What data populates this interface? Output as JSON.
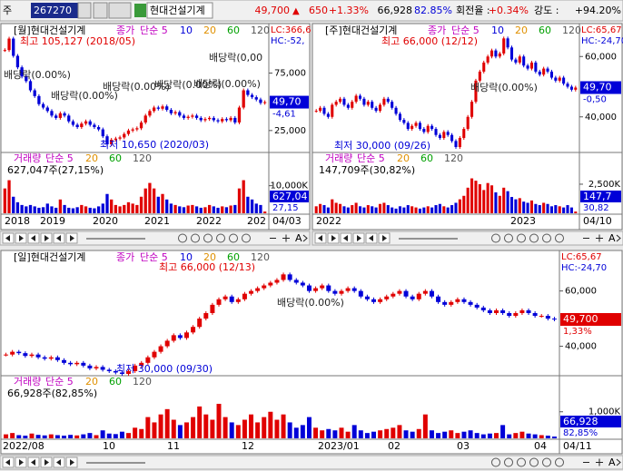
{
  "toolbar": {
    "market": "주",
    "code": "267270",
    "name": "현대건설기계",
    "price": "49,700",
    "arrow": "▲",
    "change": "650",
    "rate": "+1.33%",
    "volume": "66,928",
    "volume_ratio": "82.85%",
    "turnover_label": "회전율 :",
    "turnover": "+0.34%",
    "strength_label": "강도 :",
    "strength": "+94.20%"
  },
  "scroll_text": "A",
  "panels": [
    {
      "title": "[월]현대건설기계",
      "ma_legend": [
        "종가",
        "단순 5",
        "10",
        "20",
        "60",
        "120"
      ],
      "lc": "LC:366,6",
      "hc": "HC:-52,",
      "annotations": [
        "최고 105,127 (2018/05)",
        "최저 10,650 (2020/03)",
        "배당락(0.00%)",
        "배당락(0.00%)",
        "배당락(0.00%)",
        "배당락(0.00%)",
        "배당락(0.00%)",
        "배당락(0,00"
      ],
      "price_ticks": [
        {
          "value": 75000,
          "label": "75,000"
        },
        {
          "value": 25000,
          "label": "25,000"
        }
      ],
      "price_box": {
        "value": 49700,
        "label": "49,70"
      },
      "change_label": "-4,61",
      "volume_title": [
        "거래량",
        "단순 5",
        "20",
        "60",
        "120"
      ],
      "volume_text": "627,047주(27,15%)",
      "volume_ticks": [
        {
          "value": 10000,
          "label": "10,000K"
        }
      ],
      "volume_box": "627,04",
      "volume_ratio": "27,15",
      "x_labels": [
        "2018",
        "2019",
        "2020",
        "2021",
        "2022",
        "202"
      ],
      "last_date": "04/03",
      "ylim": [
        7500,
        107000
      ],
      "vlim": [
        0,
        13500
      ],
      "closes": [
        95000,
        105000,
        90000,
        80000,
        72000,
        68000,
        60000,
        55000,
        48000,
        45000,
        42000,
        38000,
        36000,
        40000,
        38000,
        33000,
        30000,
        28000,
        31000,
        33000,
        30000,
        28000,
        26000,
        20000,
        13000,
        17000,
        18000,
        19000,
        22000,
        25000,
        26000,
        27000,
        32000,
        38000,
        42000,
        45000,
        44000,
        46000,
        43000,
        40000,
        41000,
        38000,
        36000,
        37000,
        38000,
        36000,
        34000,
        35000,
        36000,
        34000,
        33000,
        35000,
        34000,
        36000,
        32000,
        45000,
        60000,
        56000,
        54000,
        52000,
        49050,
        49700
      ],
      "volumes": [
        9000,
        12000,
        6000,
        4000,
        3000,
        2500,
        3000,
        2500,
        2000,
        2200,
        3500,
        2500,
        2000,
        5000,
        3000,
        2000,
        1800,
        2200,
        3000,
        2500,
        2000,
        1800,
        2500,
        3500,
        7000,
        5000,
        3000,
        2500,
        3000,
        4000,
        3500,
        3000,
        6000,
        9000,
        11000,
        9000,
        6000,
        7000,
        5000,
        3500,
        3000,
        2500,
        2200,
        2800,
        3000,
        2500,
        2000,
        2200,
        3000,
        2500,
        2000,
        2500,
        2200,
        2800,
        3000,
        9000,
        12000,
        6000,
        5000,
        3500,
        3000,
        627
      ]
    },
    {
      "title": "[주]현대건설기계",
      "ma_legend": [
        "종가",
        "단순 5",
        "10",
        "20",
        "60",
        "120"
      ],
      "lc": "LC:65,67",
      "hc": "HC:-24,70",
      "annotations": [
        "최고 66,000 (12/12)",
        "최저 30,000 (09/26)",
        "배당락(0.00%)"
      ],
      "price_ticks": [
        {
          "value": 60000,
          "label": "60,000"
        },
        {
          "value": 40000,
          "label": "40,000"
        }
      ],
      "price_box": {
        "value": 49700,
        "label": "49,70"
      },
      "change_label": "-0,50",
      "volume_title": [
        "거래량",
        "단순 5",
        "20",
        "60",
        "120"
      ],
      "volume_text": "147,709주(30,82%)",
      "volume_ticks": [
        {
          "value": 2500,
          "label": "2,500K"
        }
      ],
      "volume_box": "147,7",
      "volume_ratio": "30,82",
      "x_labels": [
        "2022",
        "2023"
      ],
      "last_date": "04/10",
      "ylim": [
        28800,
        66700
      ],
      "vlim": [
        0,
        3200
      ],
      "closes": [
        42000,
        43000,
        41000,
        40000,
        44000,
        45000,
        46000,
        44000,
        43000,
        45000,
        47000,
        46000,
        44000,
        45000,
        43000,
        42000,
        44000,
        46000,
        45000,
        43000,
        41000,
        39000,
        38000,
        36000,
        37000,
        38000,
        36000,
        35000,
        37000,
        36000,
        34000,
        33000,
        35000,
        34000,
        32000,
        30000,
        33000,
        36000,
        40000,
        45000,
        52000,
        55000,
        58000,
        60000,
        62000,
        60000,
        61000,
        66000,
        63000,
        59000,
        58000,
        60000,
        57000,
        56000,
        58000,
        55000,
        54000,
        56000,
        55000,
        53000,
        52000,
        53000,
        51000,
        50000,
        49000,
        49700
      ],
      "volumes": [
        600,
        800,
        700,
        500,
        1200,
        900,
        800,
        600,
        500,
        700,
        900,
        600,
        500,
        700,
        600,
        500,
        800,
        900,
        700,
        500,
        400,
        600,
        500,
        700,
        600,
        500,
        400,
        500,
        600,
        500,
        700,
        800,
        600,
        500,
        700,
        900,
        1200,
        1500,
        2200,
        3000,
        2800,
        2500,
        2000,
        2600,
        2400,
        1800,
        1500,
        2200,
        1900,
        1400,
        1200,
        1300,
        1000,
        900,
        1100,
        800,
        700,
        900,
        800,
        600,
        700,
        600,
        500,
        700,
        500,
        148
      ]
    },
    {
      "title": "[일]현대건설기계",
      "ma_legend": [
        "종가",
        "단순 5",
        "10",
        "20",
        "60",
        "120"
      ],
      "lc": "LC:65,67",
      "hc": "HC:-24,70",
      "annotations": [
        "최고 66,000 (12/13)",
        "최저 30,000 (09/30)",
        "배당락(0.00%)"
      ],
      "price_ticks": [
        {
          "value": 60000,
          "label": "60,000"
        },
        {
          "value": 40000,
          "label": "40,000"
        }
      ],
      "price_box": {
        "value": 49700,
        "label": "49,700"
      },
      "change_label": "1,33%",
      "volume_title": [
        "거래량",
        "단순 5",
        "20",
        "60",
        "120"
      ],
      "volume_text": "66,928주(82,85%)",
      "volume_ticks": [
        {
          "value": 1000,
          "label": "1,000K"
        }
      ],
      "volume_box": "66,928",
      "volume_ratio": "82,85%",
      "x_labels": [
        "2022/08",
        "10",
        "11",
        "12",
        "2023/01",
        "02",
        "03",
        "04"
      ],
      "last_date": "04/11",
      "ylim": [
        30000,
        69400
      ],
      "vlim": [
        0,
        1470
      ],
      "closes": [
        37000,
        38000,
        37500,
        36500,
        37000,
        36000,
        35500,
        36000,
        35000,
        34000,
        33500,
        34000,
        33000,
        32000,
        32500,
        31500,
        31000,
        30500,
        30000,
        31000,
        33000,
        34000,
        36000,
        38000,
        40000,
        42000,
        44000,
        43000,
        45000,
        47000,
        50000,
        52000,
        55000,
        57000,
        58000,
        56000,
        57000,
        59000,
        60000,
        61000,
        62000,
        63000,
        64000,
        66000,
        64000,
        63000,
        62000,
        60000,
        61000,
        62000,
        60000,
        59000,
        60000,
        61000,
        60000,
        58000,
        57000,
        56000,
        57000,
        58000,
        59000,
        60000,
        58000,
        57000,
        59000,
        60000,
        58000,
        56000,
        55000,
        56000,
        57000,
        56000,
        55000,
        54000,
        53000,
        52000,
        53000,
        52000,
        51000,
        52000,
        53000,
        52000,
        51000,
        51000,
        50000,
        49700
      ],
      "volumes": [
        150,
        200,
        120,
        100,
        180,
        130,
        110,
        150,
        120,
        100,
        130,
        110,
        150,
        200,
        120,
        300,
        180,
        160,
        250,
        200,
        400,
        350,
        800,
        600,
        900,
        1100,
        700,
        500,
        600,
        800,
        1200,
        900,
        700,
        1300,
        800,
        600,
        500,
        700,
        900,
        600,
        800,
        1000,
        700,
        900,
        600,
        400,
        500,
        800,
        400,
        300,
        350,
        300,
        400,
        250,
        500,
        300,
        200,
        250,
        300,
        350,
        400,
        500,
        300,
        250,
        350,
        900,
        300,
        200,
        250,
        300,
        200,
        250,
        300,
        200,
        150,
        180,
        200,
        500,
        150,
        200,
        250,
        180,
        150,
        120,
        100,
        67
      ]
    }
  ]
}
